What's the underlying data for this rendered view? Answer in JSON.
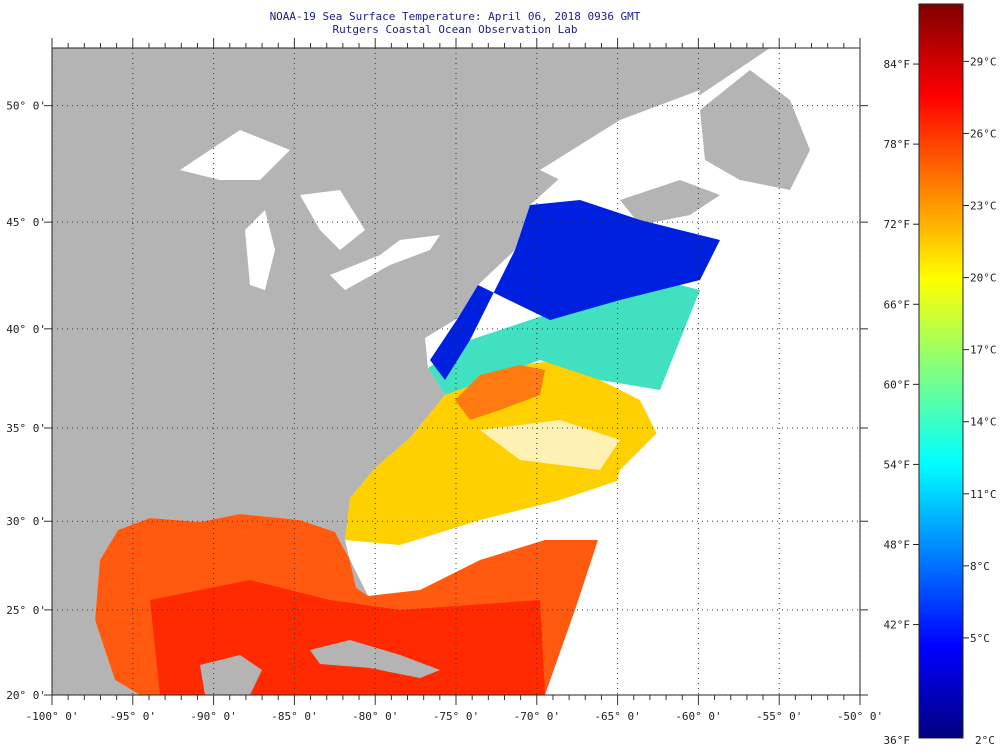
{
  "header": {
    "title": "NOAA-19 Sea Surface Temperature:  April 06, 2018 0936 GMT",
    "subtitle": "Rutgers Coastal Ocean Observation Lab"
  },
  "map": {
    "lon_range": [
      -100,
      -50
    ],
    "lat_range": [
      20,
      52.3
    ],
    "lon_ticks": [
      {
        "value": -100,
        "label": "-100° 0'"
      },
      {
        "value": -95,
        "label": "-95° 0'"
      },
      {
        "value": -90,
        "label": "-90° 0'"
      },
      {
        "value": -85,
        "label": "-85° 0'"
      },
      {
        "value": -80,
        "label": "-80° 0'"
      },
      {
        "value": -75,
        "label": "-75° 0'"
      },
      {
        "value": -70,
        "label": "-70° 0'"
      },
      {
        "value": -65,
        "label": "-65° 0'"
      },
      {
        "value": -60,
        "label": "-60° 0'"
      },
      {
        "value": -55,
        "label": "-55° 0'"
      },
      {
        "value": -50,
        "label": "-50° 0'"
      }
    ],
    "lat_ticks": [
      {
        "value": 20,
        "label": "20° 0'"
      },
      {
        "value": 25,
        "label": "25° 0'"
      },
      {
        "value": 30,
        "label": "30° 0'"
      },
      {
        "value": 35,
        "label": "35° 0'"
      },
      {
        "value": 40,
        "label": "40° 0'"
      },
      {
        "value": 45,
        "label": "45° 0'"
      },
      {
        "value": 50,
        "label": "50° 0'"
      }
    ],
    "colors": {
      "land": "#b4b4b4",
      "no_data": "#ffffff",
      "grid": "#333333"
    }
  },
  "colorbar": {
    "min_f": 33.5,
    "max_f": 88.5,
    "fahrenheit": [
      {
        "value": 84,
        "label": "84°F"
      },
      {
        "value": 78,
        "label": "78°F"
      },
      {
        "value": 72,
        "label": "72°F"
      },
      {
        "value": 66,
        "label": "66°F"
      },
      {
        "value": 60,
        "label": "60°F"
      },
      {
        "value": 54,
        "label": "54°F"
      },
      {
        "value": 48,
        "label": "48°F"
      },
      {
        "value": 42,
        "label": "42°F"
      }
    ],
    "fahrenheit_min_label": "36°F",
    "celsius": [
      {
        "value": 29,
        "label": "29°C"
      },
      {
        "value": 26,
        "label": "26°C"
      },
      {
        "value": 23,
        "label": "23°C"
      },
      {
        "value": 20,
        "label": "20°C"
      },
      {
        "value": 17,
        "label": "17°C"
      },
      {
        "value": 14,
        "label": "14°C"
      },
      {
        "value": 11,
        "label": "11°C"
      },
      {
        "value": 8,
        "label": "8°C"
      },
      {
        "value": 5,
        "label": "5°C"
      }
    ],
    "celsius_min_label": "2°C",
    "stops": [
      "#00007f",
      "#0000ff",
      "#0080ff",
      "#00ffff",
      "#80ff80",
      "#ffff00",
      "#ff8000",
      "#ff0000",
      "#7f0000"
    ]
  }
}
